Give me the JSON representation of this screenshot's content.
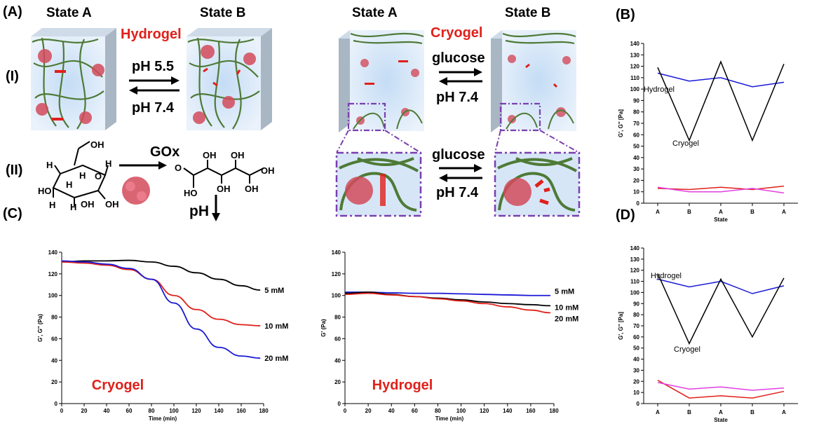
{
  "panel_letters": {
    "a": "(A)",
    "b": "(B)",
    "c": "(C)",
    "d": "(D)",
    "i": "(I)",
    "ii": "(II)"
  },
  "schematic": {
    "hydrogel": {
      "state_a": "State A",
      "state_b": "State B",
      "title": "Hydrogel",
      "forward": "pH 5.5",
      "reverse": "pH 7.4"
    },
    "cryogel": {
      "state_a": "State A",
      "state_b": "State B",
      "title": "Cryogel",
      "forward": "glucose",
      "reverse": "pH 7.4",
      "zoom_forward": "glucose",
      "zoom_reverse": "pH 7.4"
    },
    "reaction": {
      "enzyme": "GOx",
      "ph_label": "pH",
      "oh": "OH",
      "h": "H",
      "o": "O",
      "ho": "HO"
    }
  },
  "colors": {
    "black": "#000000",
    "blue": "#1a1ad6",
    "red": "#e0201a",
    "magenta": "#e040e0",
    "cube": "#d6e6f7",
    "fiber": "#4e7a36",
    "dash": "#7a3fb0"
  },
  "chart_data": [
    {
      "id": "B",
      "type": "line",
      "xlabel": "State",
      "ylabel": "G', G'' [Pa]",
      "categories": [
        "A",
        "B",
        "A",
        "B",
        "A"
      ],
      "ylim": [
        0,
        140
      ],
      "yticks": [
        0,
        10,
        20,
        30,
        40,
        50,
        60,
        70,
        80,
        90,
        100,
        110,
        120,
        130,
        140
      ],
      "series": [
        {
          "name": "Hydrogel",
          "color": "#1a1ad6",
          "values": [
            114,
            107,
            110,
            102,
            106
          ]
        },
        {
          "name": "Cryogel",
          "color": "#000000",
          "values": [
            119,
            55,
            124,
            55,
            122
          ]
        },
        {
          "color": "#e0201a",
          "values": [
            13,
            12,
            14,
            12,
            15
          ]
        },
        {
          "color": "#e040e0",
          "values": [
            14,
            10,
            10,
            13,
            9
          ]
        }
      ],
      "annotations": [
        {
          "text": "Hydrogel"
        },
        {
          "text": "Cryogel"
        }
      ]
    },
    {
      "id": "D",
      "type": "line",
      "xlabel": "State",
      "ylabel": "G', G'' [Pa]",
      "categories": [
        "A",
        "B",
        "A",
        "B",
        "A"
      ],
      "ylim": [
        0,
        140
      ],
      "yticks": [
        0,
        10,
        20,
        30,
        40,
        50,
        60,
        70,
        80,
        90,
        100,
        110,
        120,
        130,
        140
      ],
      "series": [
        {
          "name": "Hydrogel",
          "color": "#1a1ad6",
          "values": [
            112,
            105,
            110,
            99,
            106
          ]
        },
        {
          "name": "Cryogel",
          "color": "#000000",
          "values": [
            117,
            54,
            112,
            60,
            113
          ]
        },
        {
          "color": "#e0201a",
          "values": [
            21,
            5,
            7,
            5,
            11
          ]
        },
        {
          "color": "#e040e0",
          "values": [
            19,
            13,
            15,
            12,
            14
          ]
        }
      ],
      "annotations": [
        {
          "text": "Hydrogel"
        },
        {
          "text": "Cryogel"
        }
      ]
    },
    {
      "id": "C-cryogel",
      "type": "line",
      "title": "Cryogel",
      "xlabel": "Time (min)",
      "ylabel": "G', G'' (Pa)",
      "xlim": [
        0,
        180
      ],
      "ylim": [
        0,
        140
      ],
      "xticks": [
        0,
        20,
        40,
        60,
        80,
        100,
        120,
        140,
        160,
        180
      ],
      "yticks": [
        0,
        20,
        40,
        60,
        80,
        100,
        120,
        140
      ],
      "series": [
        {
          "name": "5 mM",
          "color": "#000000",
          "x": [
            0,
            20,
            40,
            60,
            80,
            100,
            120,
            140,
            160,
            177
          ],
          "values": [
            131,
            132,
            132,
            132.5,
            131,
            127,
            121,
            115,
            109,
            105
          ]
        },
        {
          "name": "10 mM",
          "color": "#e0201a",
          "x": [
            0,
            20,
            40,
            60,
            80,
            100,
            120,
            140,
            160,
            177
          ],
          "values": [
            131,
            130,
            128,
            124,
            115,
            100,
            87,
            78,
            73,
            72
          ]
        },
        {
          "name": "20 mM",
          "color": "#1a1ad6",
          "x": [
            0,
            20,
            40,
            60,
            80,
            100,
            120,
            140,
            160,
            177
          ],
          "values": [
            132,
            131,
            129,
            125,
            115,
            93,
            69,
            52,
            44,
            42
          ]
        }
      ]
    },
    {
      "id": "C-hydrogel",
      "type": "line",
      "title": "Hydrogel",
      "xlabel": "Time (min)",
      "ylabel": "G' (Pa)",
      "xlim": [
        0,
        180
      ],
      "ylim": [
        0,
        140
      ],
      "xticks": [
        0,
        20,
        40,
        60,
        80,
        100,
        120,
        140,
        160,
        180
      ],
      "yticks": [
        0,
        20,
        40,
        60,
        80,
        100,
        120,
        140
      ],
      "series": [
        {
          "name": "5 mM",
          "color": "#1a1ad6",
          "x": [
            0,
            20,
            40,
            60,
            80,
            100,
            120,
            140,
            160,
            177
          ],
          "values": [
            103,
            103,
            102.5,
            102,
            102,
            101.5,
            101,
            100.5,
            100,
            100
          ]
        },
        {
          "name": "10 mM",
          "color": "#000000",
          "x": [
            0,
            20,
            40,
            60,
            80,
            100,
            120,
            140,
            160,
            177
          ],
          "values": [
            102,
            103,
            101,
            99,
            97.5,
            96,
            94,
            92.5,
            91.5,
            90.5
          ]
        },
        {
          "name": "20 mM",
          "color": "#e0201a",
          "x": [
            0,
            20,
            40,
            60,
            80,
            100,
            120,
            140,
            160,
            177
          ],
          "values": [
            101,
            102,
            100.5,
            99,
            97,
            95,
            92.5,
            89.5,
            86.5,
            84
          ]
        }
      ]
    }
  ]
}
